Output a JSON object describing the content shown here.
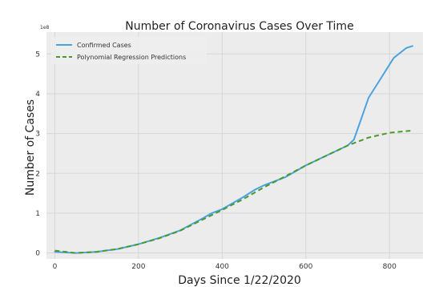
{
  "chart_data": {
    "type": "line",
    "title": "Number of Coronavirus Cases Over Time",
    "xlabel": "Days Since 1/22/2020",
    "ylabel": "Number of Cases",
    "y_multiplier_label": "1e8",
    "xlim": [
      -20,
      880
    ],
    "ylim": [
      -0.15,
      5.55
    ],
    "x_ticks": [
      0,
      200,
      400,
      600,
      800
    ],
    "y_ticks": [
      0,
      1,
      2,
      3,
      4,
      5
    ],
    "grid": true,
    "legend_position": "top-left",
    "series": [
      {
        "name": "Confirmed Cases",
        "color": "#4aa3df",
        "style": "solid",
        "points": [
          [
            0,
            0.03
          ],
          [
            50,
            0.0
          ],
          [
            100,
            0.03
          ],
          [
            150,
            0.1
          ],
          [
            200,
            0.22
          ],
          [
            250,
            0.38
          ],
          [
            300,
            0.57
          ],
          [
            350,
            0.85
          ],
          [
            375,
            1.0
          ],
          [
            400,
            1.1
          ],
          [
            450,
            1.4
          ],
          [
            480,
            1.6
          ],
          [
            500,
            1.7
          ],
          [
            550,
            1.9
          ],
          [
            600,
            2.2
          ],
          [
            650,
            2.45
          ],
          [
            700,
            2.7
          ],
          [
            715,
            2.85
          ],
          [
            730,
            3.3
          ],
          [
            750,
            3.9
          ],
          [
            780,
            4.4
          ],
          [
            810,
            4.9
          ],
          [
            840,
            5.15
          ],
          [
            855,
            5.2
          ]
        ]
      },
      {
        "name": "Polynomial Regression Predictions",
        "color": "#4a9a2a",
        "style": "dashed",
        "points": [
          [
            0,
            0.06
          ],
          [
            50,
            0.0
          ],
          [
            100,
            0.03
          ],
          [
            150,
            0.1
          ],
          [
            200,
            0.22
          ],
          [
            250,
            0.37
          ],
          [
            300,
            0.56
          ],
          [
            350,
            0.82
          ],
          [
            400,
            1.08
          ],
          [
            450,
            1.35
          ],
          [
            500,
            1.65
          ],
          [
            550,
            1.92
          ],
          [
            600,
            2.2
          ],
          [
            650,
            2.45
          ],
          [
            700,
            2.7
          ],
          [
            750,
            2.9
          ],
          [
            800,
            3.02
          ],
          [
            850,
            3.07
          ]
        ]
      }
    ]
  }
}
